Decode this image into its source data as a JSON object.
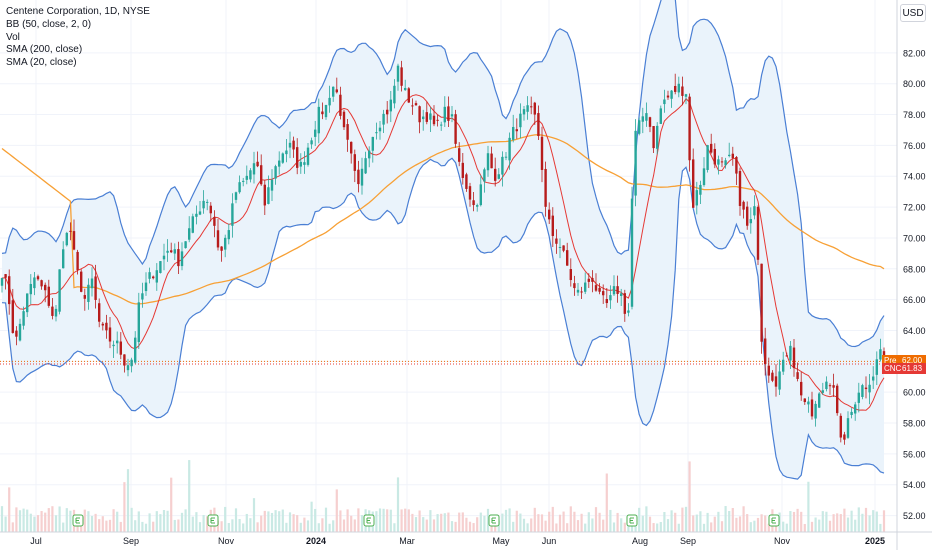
{
  "legend": {
    "title": "Centene Corporation, 1D, NYSE",
    "bb": "BB (50, close, 2, 0)",
    "vol": "Vol",
    "sma200": "SMA (200, close)",
    "sma20": "SMA (20, close)"
  },
  "currency": "USD",
  "badges": {
    "pre_label": "Pre",
    "pre_value": "62.00",
    "ticker_label": "CNC",
    "ticker_value": "61.83"
  },
  "colors": {
    "up": "#26a69a",
    "down": "#b71c1c",
    "bb_line": "#4a7fd4",
    "bb_fill": "#eaf3fb",
    "sma200": "#f7a035",
    "sma20": "#e53935",
    "pre_badge": "#ef6c00",
    "price_badge": "#e53935",
    "grid": "#f0f3fa",
    "axis_text": "#131722"
  },
  "chart_data": {
    "type": "candlestick",
    "price_range": [
      51.0,
      84.0
    ],
    "y_ticks": [
      "52.00",
      "54.00",
      "56.00",
      "58.00",
      "60.00",
      "62.00",
      "64.00",
      "66.00",
      "68.00",
      "70.00",
      "72.00",
      "74.00",
      "76.00",
      "78.00",
      "80.00",
      "82.00"
    ],
    "x_ticks": [
      "Jul",
      "Sep",
      "Nov",
      "2024",
      "Mar",
      "May",
      "Jun",
      "Aug",
      "Sep",
      "Nov",
      "2025"
    ],
    "last_price": 61.83,
    "premarket_price": 62.0,
    "close_path": [
      [
        0,
        68.3
      ],
      [
        8,
        66.5
      ],
      [
        15,
        63.0
      ],
      [
        25,
        65.8
      ],
      [
        35,
        67.5
      ],
      [
        48,
        66.0
      ],
      [
        55,
        64.5
      ],
      [
        62,
        69.5
      ],
      [
        70,
        70.6
      ],
      [
        76,
        68.0
      ],
      [
        85,
        66.0
      ],
      [
        92,
        67.2
      ],
      [
        100,
        64.2
      ],
      [
        108,
        63.5
      ],
      [
        118,
        63.0
      ],
      [
        126,
        61.8
      ],
      [
        132,
        62.2
      ],
      [
        140,
        66.0
      ],
      [
        150,
        67.5
      ],
      [
        160,
        68.4
      ],
      [
        170,
        69.5
      ],
      [
        178,
        68.5
      ],
      [
        186,
        70.0
      ],
      [
        196,
        71.5
      ],
      [
        206,
        72.8
      ],
      [
        214,
        71.0
      ],
      [
        220,
        68.8
      ],
      [
        228,
        70.5
      ],
      [
        236,
        73.0
      ],
      [
        246,
        73.8
      ],
      [
        256,
        75.1
      ],
      [
        264,
        72.0
      ],
      [
        272,
        74.0
      ],
      [
        282,
        75.6
      ],
      [
        290,
        75.9
      ],
      [
        300,
        74.5
      ],
      [
        310,
        76.3
      ],
      [
        318,
        78.0
      ],
      [
        326,
        78.5
      ],
      [
        332,
        80.0
      ],
      [
        338,
        79.2
      ],
      [
        344,
        76.8
      ],
      [
        350,
        75.5
      ],
      [
        358,
        73.0
      ],
      [
        366,
        75.5
      ],
      [
        374,
        77.0
      ],
      [
        382,
        77.8
      ],
      [
        390,
        78.5
      ],
      [
        398,
        81.0
      ],
      [
        404,
        79.5
      ],
      [
        412,
        78.7
      ],
      [
        420,
        77.8
      ],
      [
        428,
        78.0
      ],
      [
        436,
        77.0
      ],
      [
        444,
        78.2
      ],
      [
        452,
        77.6
      ],
      [
        458,
        75.0
      ],
      [
        466,
        73.5
      ],
      [
        474,
        72.0
      ],
      [
        480,
        73.0
      ],
      [
        488,
        75.3
      ],
      [
        494,
        74.0
      ],
      [
        502,
        74.8
      ],
      [
        510,
        76.4
      ],
      [
        518,
        77.5
      ],
      [
        526,
        78.2
      ],
      [
        534,
        78.0
      ],
      [
        540,
        76.2
      ],
      [
        546,
        71.5
      ],
      [
        552,
        70.3
      ],
      [
        560,
        69.5
      ],
      [
        568,
        68.0
      ],
      [
        576,
        66.3
      ],
      [
        584,
        66.8
      ],
      [
        592,
        67.5
      ],
      [
        600,
        66.0
      ],
      [
        608,
        65.6
      ],
      [
        616,
        66.8
      ],
      [
        622,
        66.2
      ],
      [
        628,
        64.5
      ],
      [
        634,
        76.5
      ],
      [
        638,
        77.0
      ],
      [
        646,
        78.5
      ],
      [
        654,
        76.0
      ],
      [
        662,
        78.8
      ],
      [
        670,
        79.2
      ],
      [
        678,
        79.8
      ],
      [
        686,
        79.5
      ],
      [
        692,
        72.0
      ],
      [
        700,
        73.5
      ],
      [
        708,
        76.0
      ],
      [
        716,
        75.0
      ],
      [
        724,
        74.5
      ],
      [
        732,
        75.3
      ],
      [
        740,
        72.5
      ],
      [
        748,
        70.5
      ],
      [
        756,
        72.0
      ],
      [
        762,
        63.0
      ],
      [
        768,
        61.5
      ],
      [
        776,
        60.8
      ],
      [
        784,
        61.8
      ],
      [
        790,
        63.5
      ],
      [
        796,
        61.0
      ],
      [
        804,
        59.5
      ],
      [
        812,
        58.5
      ],
      [
        820,
        59.8
      ],
      [
        828,
        61.0
      ],
      [
        834,
        60.5
      ],
      [
        840,
        56.5
      ],
      [
        846,
        57.5
      ],
      [
        852,
        58.8
      ],
      [
        858,
        60.2
      ],
      [
        866,
        60.5
      ],
      [
        874,
        61.3
      ],
      [
        880,
        62.8
      ],
      [
        886,
        61.8
      ]
    ]
  }
}
